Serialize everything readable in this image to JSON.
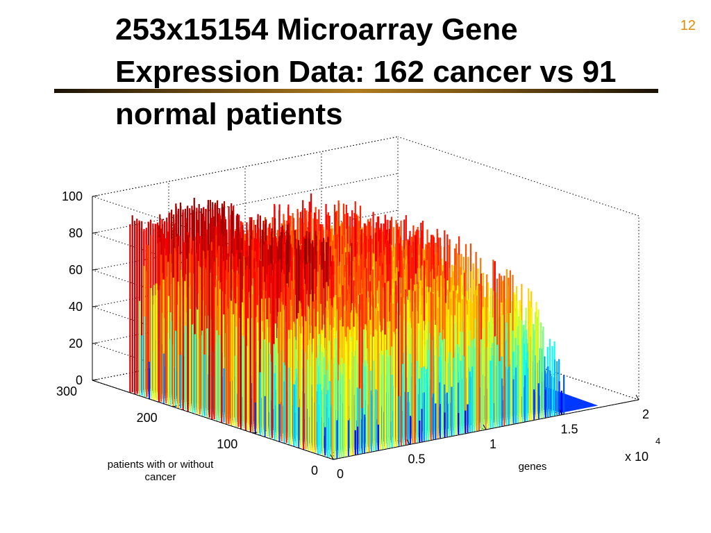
{
  "slide": {
    "title": "253x15154 Microarray Gene Expression Data: 162 cancer vs 91 normal patients",
    "number": "12"
  },
  "chart_data": {
    "type": "surface",
    "title": "",
    "xlabel": "genes",
    "ylabel": "patients with or without cancer",
    "zlabel": "",
    "x_multiplier_label": "x 10",
    "x_multiplier_exponent": "4",
    "x_ticks": [
      "0",
      "0.5",
      "1",
      "1.5",
      "2"
    ],
    "y_ticks": [
      "0",
      "100",
      "200",
      "300"
    ],
    "z_ticks": [
      "0",
      "20",
      "40",
      "60",
      "80",
      "100"
    ],
    "xlim": [
      0,
      20000
    ],
    "ylim": [
      0,
      300
    ],
    "zlim": [
      0,
      100
    ],
    "grid": true,
    "colormap": "jet",
    "dimensions": {
      "patients": 253,
      "genes": 15154
    },
    "groups": [
      {
        "name": "cancer",
        "count": 162
      },
      {
        "name": "normal",
        "count": 91
      }
    ],
    "expression_profile": {
      "gene_index": [
        0,
        1000,
        2000,
        3000,
        4000,
        5000,
        6000,
        7000,
        8000,
        9000,
        10000,
        11000,
        12000,
        13000,
        14000,
        15154
      ],
      "peak_value": [
        97,
        92,
        95,
        99,
        100,
        98,
        96,
        88,
        80,
        90,
        92,
        91,
        89,
        88,
        86,
        35
      ]
    },
    "baseline_after_index": 15154,
    "baseline_value": 4,
    "colors": {
      "low": "#00007f",
      "mid": "#00ffff",
      "high": "#7f0000"
    }
  }
}
